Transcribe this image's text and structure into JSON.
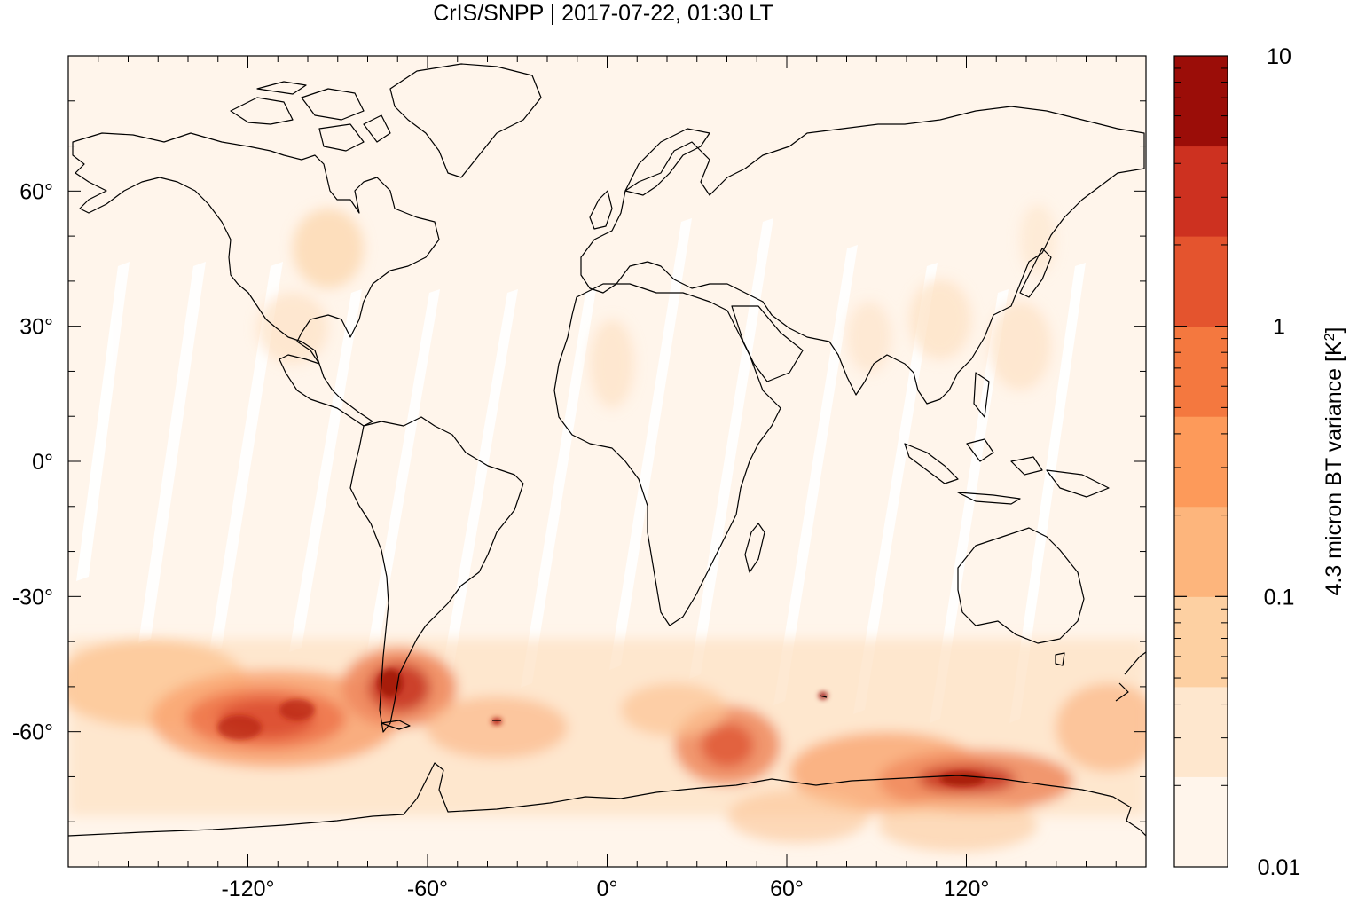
{
  "title": "CrIS/SNPP | 2017-07-22, 01:30 LT",
  "map": {
    "lon_range": [
      -180,
      180
    ],
    "lat_range": [
      -90,
      90
    ],
    "x_ticks": [
      {
        "value": -120,
        "label": "-120°"
      },
      {
        "value": -60,
        "label": "-60°"
      },
      {
        "value": 0,
        "label": "0°"
      },
      {
        "value": 60,
        "label": "60°"
      },
      {
        "value": 120,
        "label": "120°"
      }
    ],
    "y_ticks": [
      {
        "value": 60,
        "label": "60°"
      },
      {
        "value": 30,
        "label": "30°"
      },
      {
        "value": 0,
        "label": "0°"
      },
      {
        "value": -30,
        "label": "-30°"
      },
      {
        "value": -60,
        "label": "-60°"
      }
    ]
  },
  "colorbar": {
    "label": "4.3 micron BT variance [K",
    "label_sup": "2",
    "label_close": "]",
    "scale": "log",
    "range": [
      0.01,
      10
    ],
    "ticks": [
      {
        "value": 10,
        "label": "10"
      },
      {
        "value": 1,
        "label": "1"
      },
      {
        "value": 0.1,
        "label": "0.1"
      },
      {
        "value": 0.01,
        "label": "0.01"
      }
    ],
    "colors": [
      "#fff5eb",
      "#fee7ce",
      "#fdd0a2",
      "#fdb57c",
      "#fd9a5a",
      "#f4783f",
      "#e4542e",
      "#cd3120",
      "#9b0d08"
    ]
  }
}
